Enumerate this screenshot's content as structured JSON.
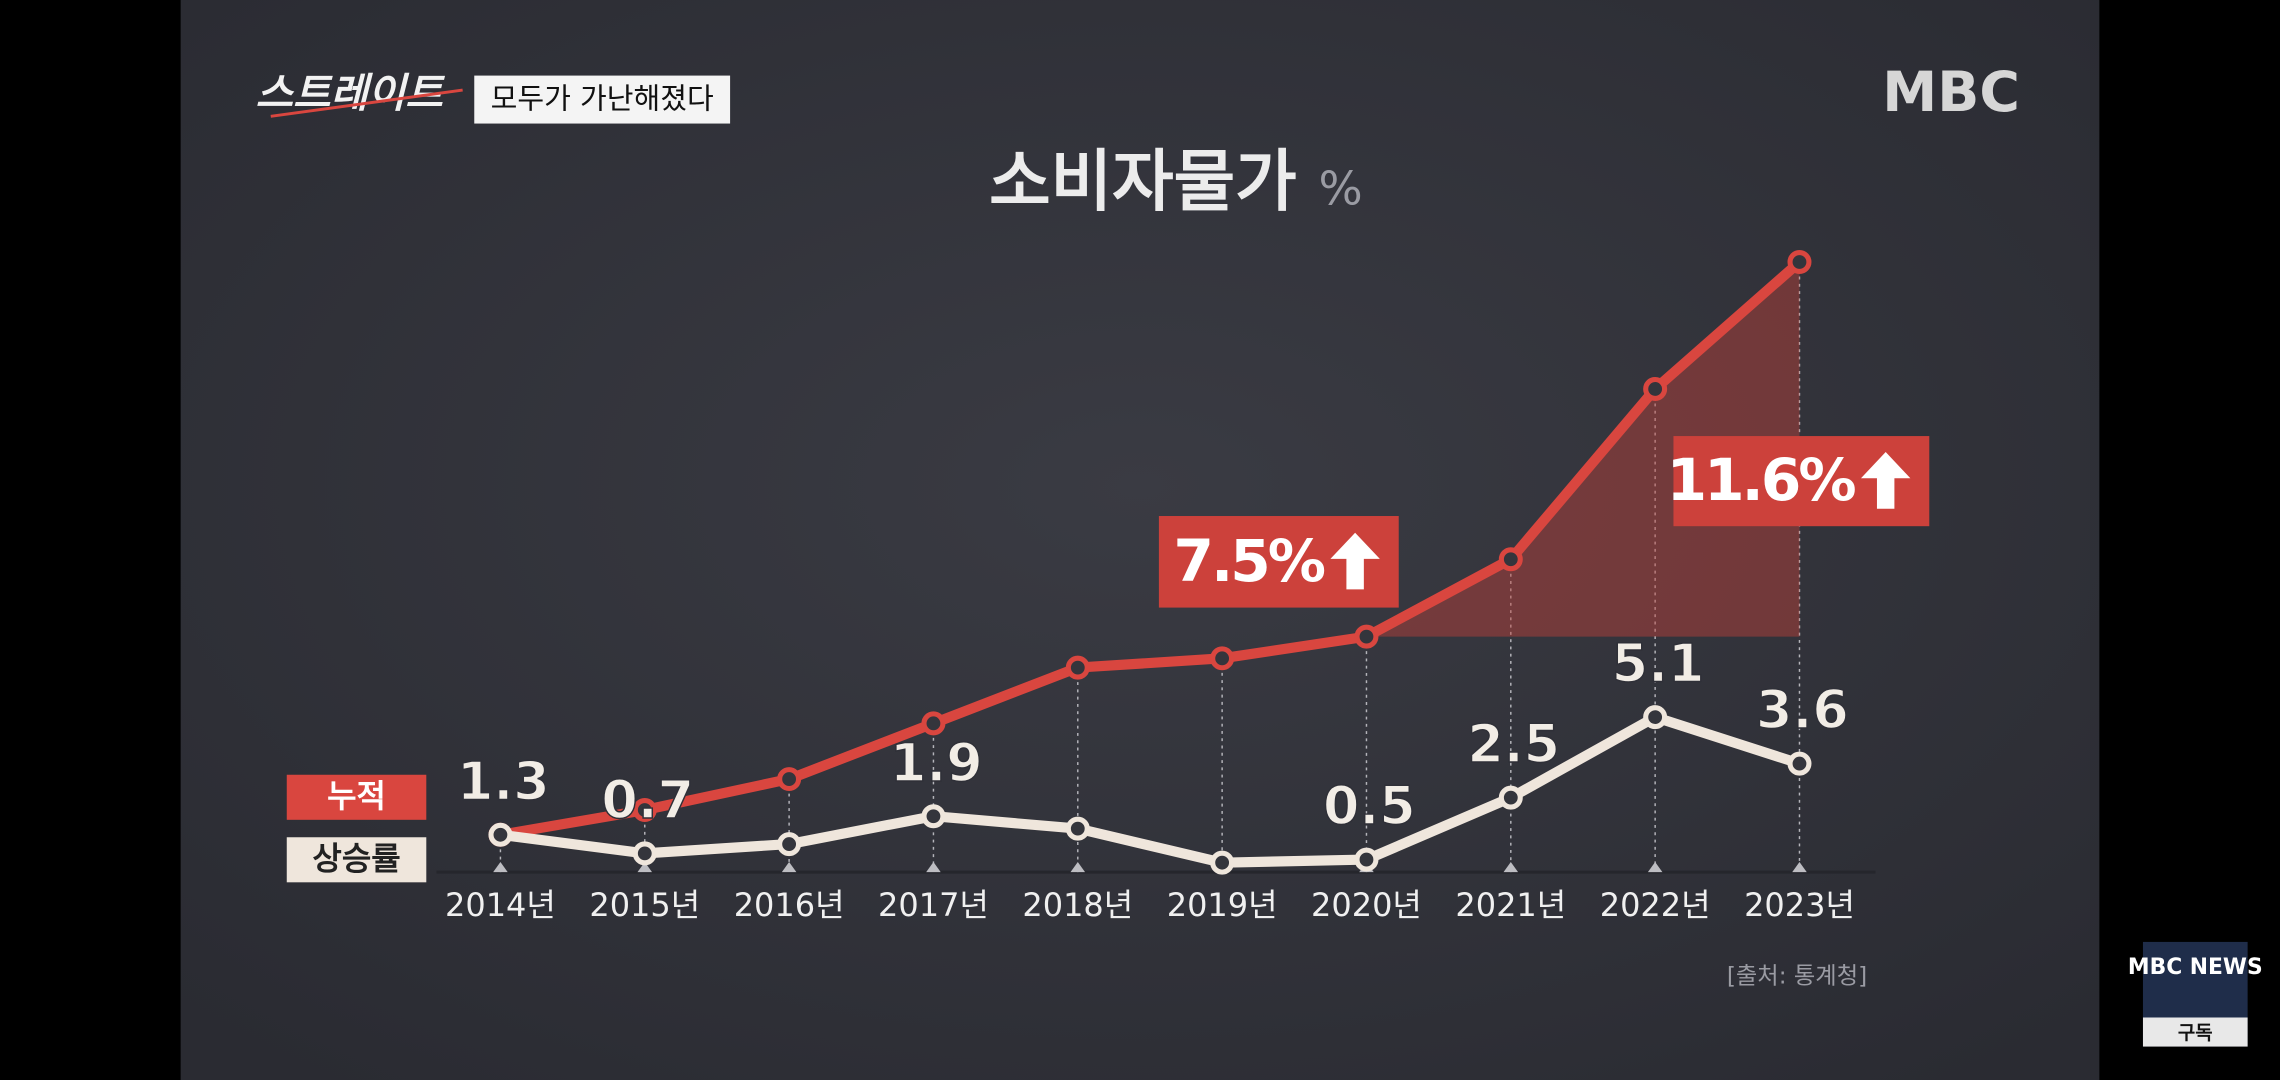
{
  "show_logo": "스트레이트",
  "headline": "모두가 가난해졌다",
  "channel": "MBC",
  "subscribe": {
    "brand": "MBC NEWS",
    "button": "구독"
  },
  "chart_data": {
    "type": "line",
    "title": "소비자물가",
    "unit": "%",
    "categories": [
      "2014년",
      "2015년",
      "2016년",
      "2017년",
      "2018년",
      "2019년",
      "2020년",
      "2021년",
      "2022년",
      "2023년"
    ],
    "series": [
      {
        "name": "누적",
        "color": "#d9463f",
        "values": [
          1.3,
          2.1,
          3.1,
          4.9,
          6.7,
          7.0,
          7.7,
          10.2,
          15.7,
          19.8
        ]
      },
      {
        "name": "상승률",
        "color": "#efe6dc",
        "values": [
          1.3,
          0.7,
          1.0,
          1.9,
          1.5,
          0.4,
          0.5,
          2.5,
          5.1,
          3.6
        ],
        "value_labels": [
          "1.3",
          "0.7",
          null,
          "1.9",
          null,
          null,
          "0.5",
          "2.5",
          "5.1",
          "3.6"
        ]
      }
    ],
    "annotations": [
      {
        "text": "7.5%"
      },
      {
        "text": "11.6%"
      }
    ],
    "source": "[출처: 통계청]"
  }
}
